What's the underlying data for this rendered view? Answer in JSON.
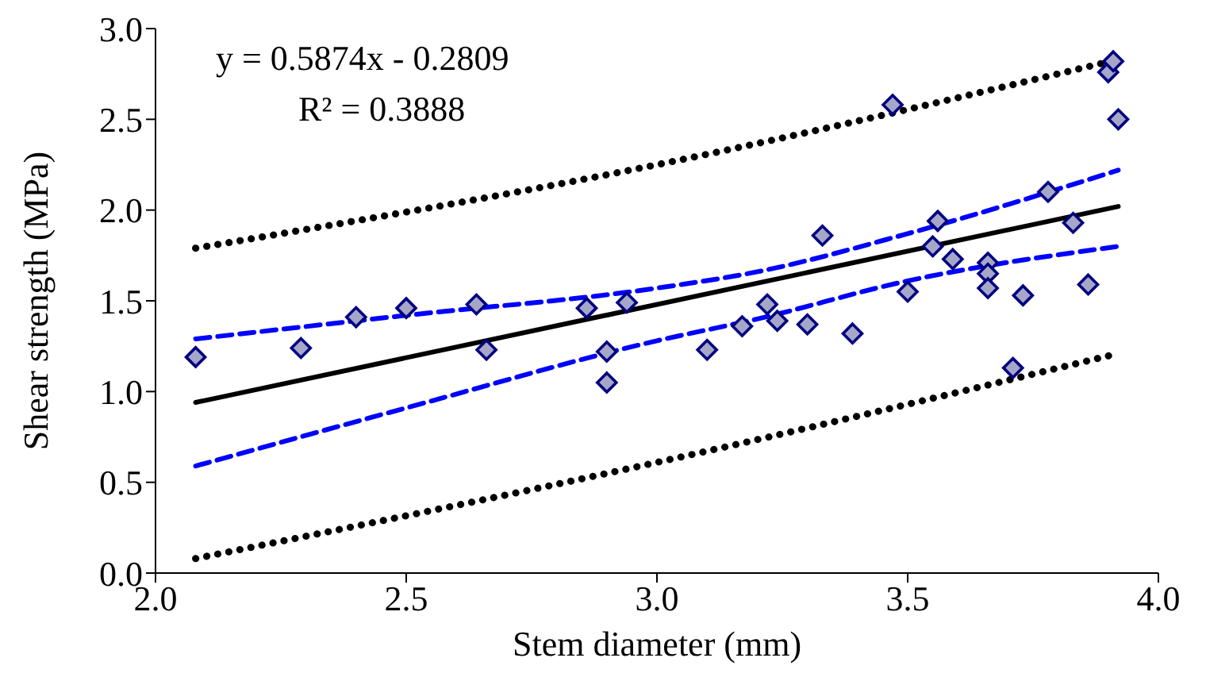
{
  "chart_data": {
    "type": "scatter",
    "xlabel": "Stem diameter (mm)",
    "ylabel": "Shear strength (MPa)",
    "annotations": [
      "y = 0.5874x - 0.2809",
      "R² = 0.3888"
    ],
    "xlim": [
      2,
      4
    ],
    "xticks": [
      {
        "value": 2,
        "label": "2.0"
      },
      {
        "value": 2.5,
        "label": "2.5"
      },
      {
        "value": 3,
        "label": "3.0"
      },
      {
        "value": 3.5,
        "label": "3.5"
      },
      {
        "value": 4,
        "label": "4.0"
      }
    ],
    "ylim": [
      0,
      3
    ],
    "yticks": [
      {
        "value": 0,
        "label": "0.0"
      },
      {
        "value": 0.5,
        "label": "0.5"
      },
      {
        "value": 1,
        "label": "1.0"
      },
      {
        "value": 1.5,
        "label": "1.5"
      },
      {
        "value": 2,
        "label": "2.0"
      },
      {
        "value": 2.5,
        "label": "2.5"
      },
      {
        "value": 3,
        "label": "3.0"
      }
    ],
    "grid": false,
    "legend": false,
    "series": [
      {
        "color": "#a6a6c8",
        "marker": "diamond",
        "x": [
          2.08,
          2.29,
          2.4,
          2.5,
          2.64,
          2.66,
          2.86,
          2.9,
          2.9,
          2.94,
          3.1,
          3.17,
          3.22,
          3.24,
          3.3,
          3.33,
          3.39,
          3.47,
          3.5,
          3.55,
          3.56,
          3.59,
          3.66,
          3.66,
          3.66,
          3.71,
          3.73,
          3.78,
          3.83,
          3.86,
          3.9,
          3.91,
          3.92
        ],
        "values": [
          1.19,
          1.24,
          1.41,
          1.46,
          1.48,
          1.23,
          1.46,
          1.22,
          1.05,
          1.49,
          1.23,
          1.36,
          1.48,
          1.39,
          1.37,
          1.86,
          1.32,
          2.58,
          1.55,
          1.8,
          1.94,
          1.73,
          1.71,
          1.65,
          1.57,
          1.13,
          1.53,
          2.1,
          1.93,
          1.59,
          2.76,
          2.82,
          2.5
        ]
      },
      {
        "type": "line",
        "color": "#000000",
        "line_style": "solid",
        "marker": "none",
        "x": [
          2.08,
          3.92
        ],
        "values": [
          0.94,
          2.02
        ]
      },
      {
        "type": "line",
        "color": "#0000ff",
        "line_style": "dashed",
        "marker": "none",
        "x": [
          2.08,
          2.5,
          3.0,
          3.2,
          3.5,
          3.92
        ],
        "values": [
          1.29,
          1.42,
          1.57,
          1.66,
          1.87,
          2.22
        ]
      },
      {
        "type": "line",
        "color": "#0000ff",
        "line_style": "dashed",
        "marker": "none",
        "x": [
          2.08,
          2.5,
          3.0,
          3.2,
          3.5,
          3.92
        ],
        "values": [
          0.59,
          0.91,
          1.28,
          1.4,
          1.61,
          1.8
        ]
      },
      {
        "type": "line",
        "color": "#000000",
        "line_style": "dotted",
        "marker": "none",
        "x": [
          2.08,
          3.0,
          3.92
        ],
        "values": [
          1.79,
          2.25,
          2.83
        ]
      },
      {
        "type": "line",
        "color": "#000000",
        "line_style": "dotted",
        "marker": "none",
        "x": [
          2.08,
          3.0,
          3.92
        ],
        "values": [
          0.08,
          0.61,
          1.21
        ]
      }
    ]
  }
}
